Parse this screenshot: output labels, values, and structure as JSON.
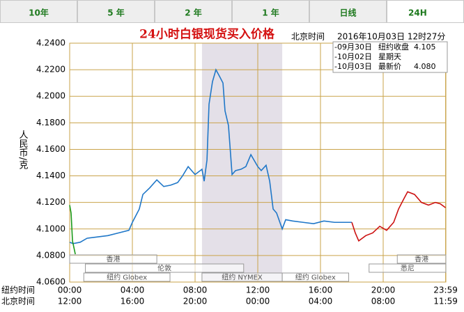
{
  "tabs": [
    "10年",
    "5 年",
    "2 年",
    "1 年",
    "日线",
    "24H"
  ],
  "active_tab": 5,
  "chart_data": {
    "type": "line",
    "title": "24小时白银现货买入价格",
    "time_label": "北京时间",
    "timestamp": "2016年10月03日 12时27分",
    "y_label": "人民币/克",
    "x_row_labels": [
      "纽约时间",
      "北京时间"
    ],
    "sessions": [
      "香港",
      "伦敦",
      "纽约 Globex",
      "纽约 NYMEX",
      "纽约 Globex",
      "悉尼",
      "香港"
    ],
    "xlim": [
      0,
      24
    ],
    "xticks": [
      {
        "value": 0,
        "label": "00:00"
      },
      {
        "value": 4,
        "label": "04:00"
      },
      {
        "value": 8,
        "label": "08:00"
      },
      {
        "value": 12,
        "label": "12:00"
      },
      {
        "value": 16,
        "label": "16:00"
      },
      {
        "value": 20,
        "label": "20:00"
      },
      {
        "value": 23.98,
        "label": "23:59"
      }
    ],
    "x2ticks": [
      {
        "value": 0,
        "label": "12:00"
      },
      {
        "value": 4,
        "label": "16:00"
      },
      {
        "value": 8,
        "label": "20:00"
      },
      {
        "value": 12,
        "label": "00:00"
      },
      {
        "value": 16,
        "label": "04:00"
      },
      {
        "value": 20,
        "label": "08:00"
      },
      {
        "value": 23.98,
        "label": "11:59"
      }
    ],
    "ylim": [
      4.06,
      4.24
    ],
    "yticks": [
      {
        "value": 4.24,
        "label": "4.2400"
      },
      {
        "value": 4.22,
        "label": "4.2200"
      },
      {
        "value": 4.2,
        "label": "4.2000"
      },
      {
        "value": 4.18,
        "label": "4.1800"
      },
      {
        "value": 4.16,
        "label": "4.1600"
      },
      {
        "value": 4.14,
        "label": "4.1400"
      },
      {
        "value": 4.12,
        "label": "4.1200"
      },
      {
        "value": 4.1,
        "label": "4.1000"
      },
      {
        "value": 4.08,
        "label": "4.0800"
      },
      {
        "value": 4.06,
        "label": "4.0600"
      }
    ],
    "grid": true,
    "series": [
      {
        "name": "-09月30日",
        "note": "纽约收盘",
        "price": "4.105",
        "color": "#1f77c8",
        "x": [
          0,
          0.22,
          0.67,
          1.11,
          1.78,
          2.44,
          3.11,
          3.78,
          4,
          4.44,
          4.67,
          5.11,
          5.56,
          6,
          6.44,
          6.89,
          7.2,
          7.56,
          8,
          8.44,
          8.58,
          8.76,
          8.89,
          9.11,
          9.33,
          9.56,
          9.78,
          9.91,
          10.13,
          10.36,
          10.58,
          10.93,
          11.24,
          11.56,
          12,
          12.22,
          12.53,
          12.76,
          12.98,
          13.2,
          13.56,
          13.78,
          14.22,
          14.89,
          15.56,
          16.22,
          16.89,
          17.56,
          18
        ],
        "values": [
          4.09,
          4.089,
          4.09,
          4.093,
          4.094,
          4.095,
          4.097,
          4.099,
          4.105,
          4.115,
          4.126,
          4.131,
          4.137,
          4.132,
          4.133,
          4.135,
          4.14,
          4.147,
          4.141,
          4.145,
          4.136,
          4.152,
          4.194,
          4.211,
          4.22,
          4.215,
          4.21,
          4.189,
          4.178,
          4.141,
          4.144,
          4.145,
          4.147,
          4.156,
          4.147,
          4.144,
          4.148,
          4.136,
          4.115,
          4.112,
          4.1,
          4.107,
          4.106,
          4.105,
          4.104,
          4.106,
          4.105,
          4.105,
          4.105
        ]
      },
      {
        "name": "-10月02日",
        "note": "星期天",
        "color": "#cc1111",
        "x": [
          18,
          18.22,
          18.44,
          18.89,
          19.33,
          19.78,
          20.22,
          20.67,
          20.98,
          21.33,
          21.56,
          22,
          22.44,
          22.89,
          23.33,
          23.64,
          23.98
        ],
        "values": [
          4.105,
          4.097,
          4.091,
          4.095,
          4.097,
          4.102,
          4.099,
          4.105,
          4.115,
          4.123,
          4.128,
          4.126,
          4.12,
          4.118,
          4.12,
          4.119,
          4.116
        ]
      },
      {
        "name": "-10月03日",
        "note": "最新价",
        "price": "4.080",
        "color": "#1a9a1a",
        "x": [
          0,
          0.09,
          0.18,
          0.27,
          0.36
        ],
        "values": [
          4.118,
          4.112,
          4.091,
          4.086,
          4.081
        ]
      }
    ]
  }
}
